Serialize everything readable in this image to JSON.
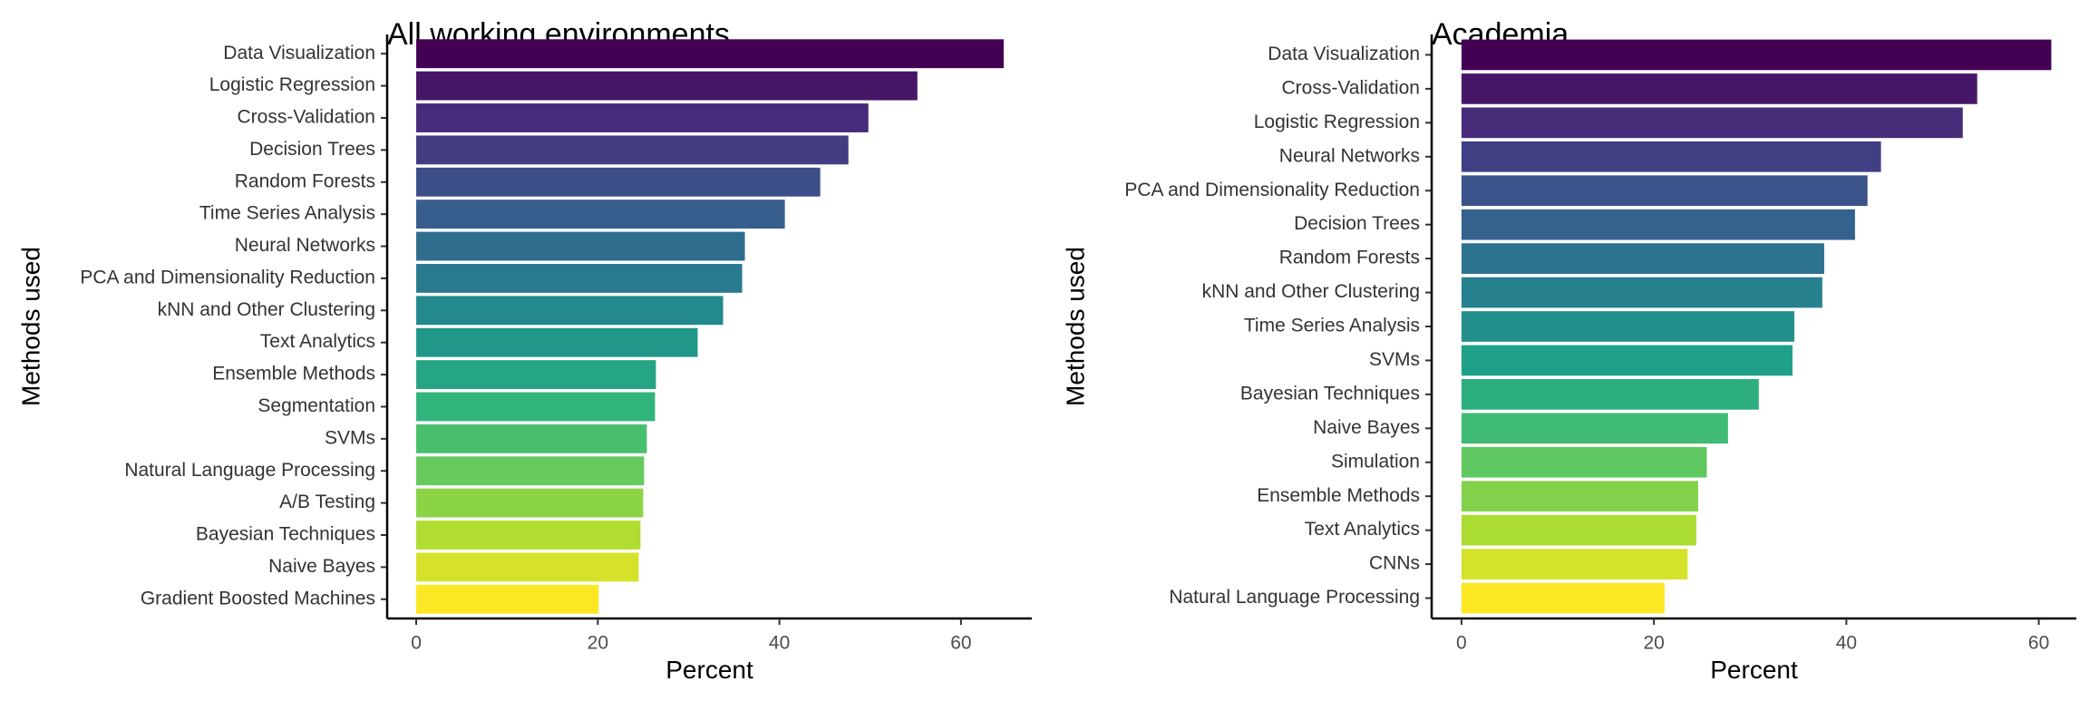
{
  "chart_data": [
    {
      "type": "bar",
      "orientation": "horizontal",
      "title": "All working environments",
      "xlabel": "Percent",
      "ylabel": "Methods used",
      "xlim": [
        -3.2,
        67.8
      ],
      "xticks": [
        "0",
        "20",
        "40",
        "60"
      ],
      "xtick_values": [
        0,
        20,
        40,
        60
      ],
      "grid": false,
      "legend": "none",
      "colormap": "viridis",
      "categories": [
        "Data Visualization",
        "Logistic Regression",
        "Cross-Validation",
        "Decision Trees",
        "Random Forests",
        "Time Series Analysis",
        "Neural Networks",
        "PCA and Dimensionality Reduction",
        "kNN and Other Clustering",
        "Text Analytics",
        "Ensemble Methods",
        "Segmentation",
        "SVMs",
        "Natural Language Processing",
        "A/B Testing",
        "Bayesian Techniques",
        "Naive Bayes",
        "Gradient Boosted Machines"
      ],
      "values": [
        64.7,
        55.2,
        49.8,
        47.6,
        44.5,
        40.6,
        36.2,
        35.9,
        33.8,
        31.0,
        26.4,
        26.3,
        25.4,
        25.1,
        25.0,
        24.7,
        24.5,
        20.1
      ]
    },
    {
      "type": "bar",
      "orientation": "horizontal",
      "title": "Academia",
      "xlabel": "Percent",
      "ylabel": "Methods used",
      "xlim": [
        -3.1,
        63.9
      ],
      "xticks": [
        "0",
        "20",
        "40",
        "60"
      ],
      "xtick_values": [
        0,
        20,
        40,
        60
      ],
      "grid": false,
      "legend": "none",
      "colormap": "viridis",
      "categories": [
        "Data Visualization",
        "Cross-Validation",
        "Logistic Regression",
        "Neural Networks",
        "PCA and Dimensionality Reduction",
        "Decision Trees",
        "Random Forests",
        "kNN and Other Clustering",
        "Time Series Analysis",
        "SVMs",
        "Bayesian Techniques",
        "Naive Bayes",
        "Simulation",
        "Ensemble Methods",
        "Text Analytics",
        "CNNs",
        "Natural Language Processing"
      ],
      "values": [
        61.3,
        53.6,
        52.1,
        43.6,
        42.2,
        40.9,
        37.7,
        37.5,
        34.6,
        34.4,
        30.9,
        27.7,
        25.5,
        24.6,
        24.4,
        23.5,
        21.1
      ]
    }
  ]
}
